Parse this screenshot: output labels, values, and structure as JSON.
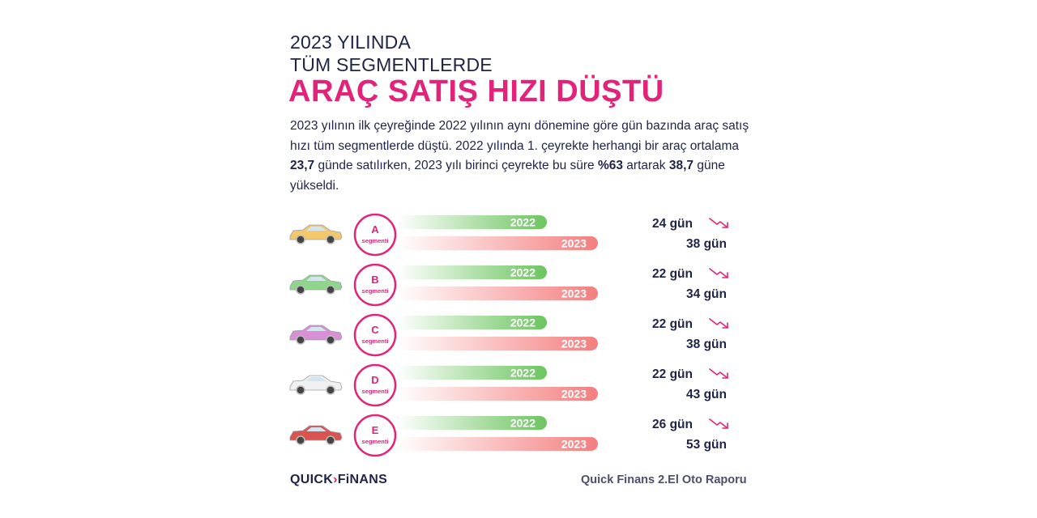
{
  "header": {
    "line1": "2023 YILINDA",
    "line2": "TÜM SEGMENTLERDE",
    "headline": "ARAÇ SATIŞ HIZI DÜŞTÜ"
  },
  "description": {
    "p1": "2023 yılının ilk çeyreğinde 2022 yılının aynı dönemine göre gün bazında araç satış hızı tüm segmentlerde düştü. 2022 yılında 1. çeyrekte herhangi bir araç ortalama ",
    "b1": "23,7",
    "p2": " günde satılırken, 2023 yılı birinci çeyrekte bu süre ",
    "b2": "%63",
    "p3": " artarak ",
    "b3": "38,7",
    "p4": " güne yükseldi."
  },
  "colors": {
    "accent": "#e3237a",
    "bar_2022": "#6cc55f",
    "bar_2023": "#f47e7e",
    "text": "#1f2447"
  },
  "chart_data": {
    "type": "bar",
    "segment_word": "segmenti",
    "unit": "gün",
    "categories": [
      "A",
      "B",
      "C",
      "D",
      "E"
    ],
    "car_colors": [
      "#f3c86a",
      "#8fd68a",
      "#d98fd6",
      "#f0f0f0",
      "#d9534f"
    ],
    "series": [
      {
        "name": "2022",
        "values": [
          24,
          22,
          22,
          22,
          26
        ]
      },
      {
        "name": "2023",
        "values": [
          38,
          34,
          38,
          43,
          53
        ]
      }
    ]
  },
  "footer": {
    "logo_left": "QUICK",
    "logo_arrow": "›",
    "logo_right": "FiNANS",
    "source": "Quick Finans 2.El Oto Raporu"
  }
}
